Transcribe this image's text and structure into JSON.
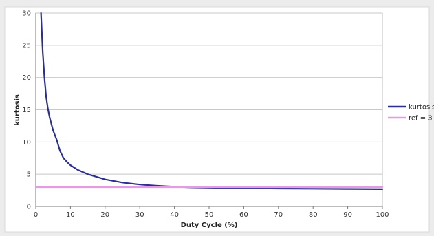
{
  "chart_data": {
    "type": "line",
    "title": "",
    "xlabel": "Duty Cycle (%)",
    "ylabel": "kurtosis",
    "xlim": [
      0,
      100
    ],
    "ylim": [
      0,
      30
    ],
    "x_ticks": [
      0,
      10,
      20,
      30,
      40,
      50,
      60,
      70,
      80,
      90,
      100
    ],
    "y_ticks": [
      0,
      5,
      10,
      15,
      20,
      25,
      30
    ],
    "grid": "horizontal",
    "legend_position": "right",
    "series": [
      {
        "name": "kurtosis",
        "color": "#2b2f8f",
        "x": [
          1.5,
          2,
          2.5,
          3,
          3.5,
          4,
          5,
          6,
          7,
          8,
          9,
          10,
          12,
          15,
          20,
          25,
          30,
          35,
          40,
          45,
          50,
          55,
          60,
          70,
          80,
          90,
          100
        ],
        "values": [
          30,
          24,
          20,
          17,
          15.2,
          13.8,
          11.8,
          10.4,
          8.6,
          7.5,
          6.9,
          6.4,
          5.7,
          5.0,
          4.2,
          3.7,
          3.4,
          3.2,
          3.05,
          2.95,
          2.9,
          2.86,
          2.82,
          2.78,
          2.74,
          2.71,
          2.68
        ]
      },
      {
        "name": "ref = 3",
        "color": "#e39be6",
        "x": [
          0,
          100
        ],
        "values": [
          3,
          3
        ]
      }
    ]
  }
}
